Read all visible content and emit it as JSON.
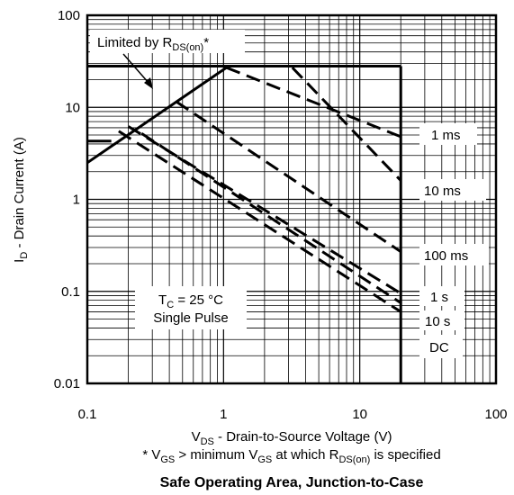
{
  "chart_data": {
    "type": "line",
    "xscale": "log",
    "yscale": "log",
    "xlim": [
      0.1,
      100
    ],
    "ylim": [
      0.01,
      100
    ],
    "grid": true,
    "x_ticks": [
      "0.1",
      "1",
      "10",
      "100"
    ],
    "y_ticks": [
      "0.01",
      "0.1",
      "1",
      "10",
      "100"
    ],
    "ylabel": {
      "pre": "I",
      "sub": "D",
      "post": " - Drain Current (A)"
    },
    "xlabel": {
      "pre": "V",
      "sub": "DS",
      "post": " - Drain-to-Source Voltage (V)"
    },
    "footnote": {
      "p1": "* V",
      "s1": "GS",
      "p2": " > minimum V",
      "s2": "GS",
      "p3": " at which R",
      "s3": "DS(on)",
      "p4": " is specified"
    },
    "title": "Safe Operating Area, Junction-to-Case",
    "annotations": {
      "limited": {
        "pre": "Limited by R",
        "sub": "DS(on)",
        "post": "*"
      },
      "condition": {
        "pre": "T",
        "sub": "C",
        "post": " = 25 °C",
        "line2": "Single Pulse"
      }
    },
    "rds_on_limit": {
      "x": [
        0.1,
        1.05
      ],
      "y": [
        2.5,
        27
      ]
    },
    "current_limit": {
      "x": [
        0.1,
        20
      ],
      "y": [
        28,
        28
      ]
    },
    "pre_limit_line": {
      "x": [
        0.1,
        0.15
      ],
      "y": [
        4.3,
        4.3
      ]
    },
    "voltage_limit": {
      "x": [
        20,
        20
      ],
      "y": [
        28,
        0.01
      ]
    },
    "series": [
      {
        "name": "1 ms",
        "x": [
          1.05,
          20
        ],
        "y": [
          27,
          4.8
        ]
      },
      {
        "name": "10 ms",
        "x": [
          3.2,
          20
        ],
        "y": [
          27,
          1.6
        ]
      },
      {
        "name": "100 ms",
        "x": [
          0.45,
          20
        ],
        "y": [
          11.5,
          0.27
        ]
      },
      {
        "name": "1 s",
        "x": [
          0.2,
          20
        ],
        "y": [
          6.2,
          0.095
        ]
      },
      {
        "name": "10 s",
        "x": [
          0.25,
          20
        ],
        "y": [
          5.2,
          0.075
        ]
      },
      {
        "name": "DC",
        "x": [
          0.17,
          20
        ],
        "y": [
          5.5,
          0.06
        ]
      }
    ],
    "series_labels": [
      {
        "name": "1 ms"
      },
      {
        "name": "10 ms"
      },
      {
        "name": "100 ms"
      },
      {
        "name": "1 s"
      },
      {
        "name": "10 s"
      },
      {
        "name": "DC"
      }
    ]
  }
}
